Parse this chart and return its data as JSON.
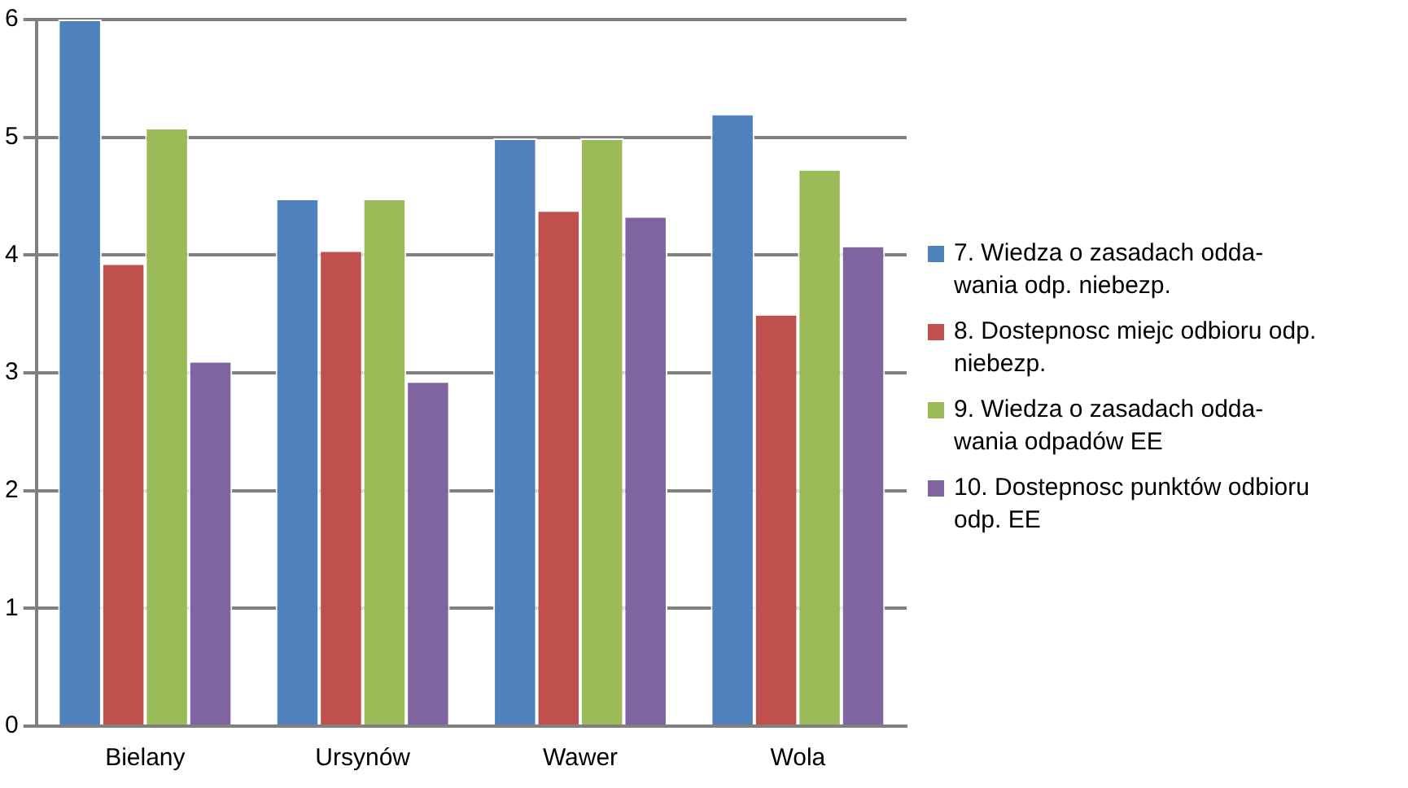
{
  "chart_data": {
    "type": "bar",
    "categories": [
      "Bielany",
      "Ursynów",
      "Wawer",
      "Wola"
    ],
    "series": [
      {
        "name": "7. Wiedza o zasadach odda-wania odp. niebezp.",
        "color": "#4f81bd",
        "values": [
          6,
          4.48,
          4.99,
          5.2
        ]
      },
      {
        "name": "8. Dostepnosc miejc odbioru odp. niebezp.",
        "color": "#c0504d",
        "values": [
          3.93,
          4.04,
          4.38,
          3.5
        ]
      },
      {
        "name": "9. Wiedza o zasadach odda-wania odpadów EE",
        "color": "#9bbb59",
        "values": [
          5.08,
          4.48,
          4.99,
          4.73
        ]
      },
      {
        "name": "10. Dostepnosc punktów odbioru odp. EE",
        "color": "#8064a2",
        "values": [
          3.1,
          2.93,
          4.33,
          4.08
        ]
      }
    ],
    "ylim": [
      0,
      6
    ],
    "yticks": [
      0,
      1,
      2,
      3,
      4,
      5,
      6
    ],
    "grid": "y",
    "legend": "right"
  }
}
